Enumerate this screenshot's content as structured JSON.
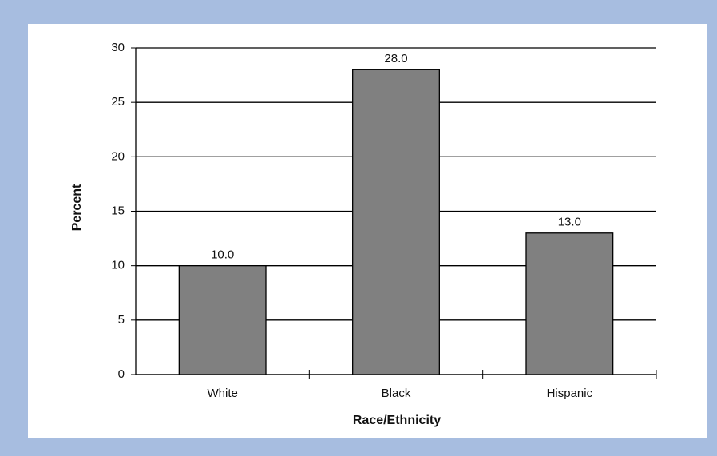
{
  "chart_data": {
    "type": "bar",
    "categories": [
      "White",
      "Black",
      "Hispanic"
    ],
    "values": [
      10,
      28,
      13
    ],
    "value_labels": [
      "10.0",
      "28.0",
      "13.0"
    ],
    "color": "#808080",
    "x_label": "Race/Ethnicity",
    "y_label": "Percent",
    "ylim": [
      0,
      30
    ],
    "yticks": [
      0,
      5,
      10,
      15,
      20,
      25,
      30
    ],
    "grid": true
  }
}
